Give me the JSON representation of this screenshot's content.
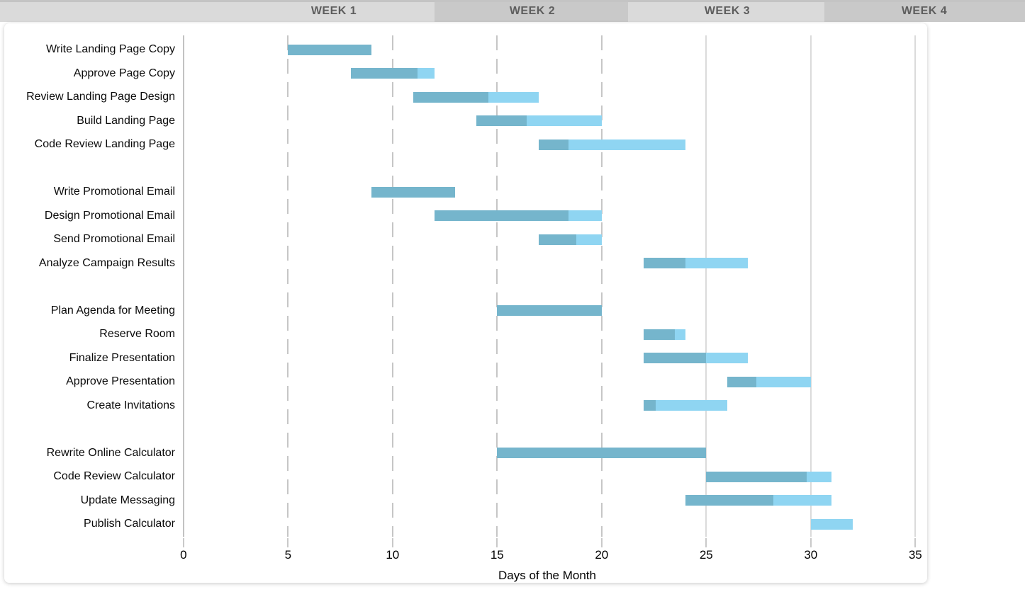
{
  "header": {
    "weeks": [
      "WEEK 1",
      "WEEK 2",
      "WEEK 3",
      "WEEK 4"
    ]
  },
  "axis": {
    "tick_values": [
      0,
      5,
      10,
      15,
      20,
      25,
      30,
      35
    ],
    "title": "Days of the Month"
  },
  "colors": {
    "bar_complete": "#75b5cc",
    "bar_remaining": "#8fd5f2",
    "grid_dashed": "#c6c6c6",
    "grid_solid": "#dbdbdb",
    "grid_axis": "#c2c2c2",
    "header_band_light": "#dadada",
    "header_band_dark": "#c9c9c9",
    "header_text": "#5e5e5e"
  },
  "chart_data": {
    "type": "gantt",
    "title": "",
    "xlabel": "Days of the Month",
    "xlim": [
      0,
      35
    ],
    "x_ticks": [
      0,
      5,
      10,
      15,
      20,
      25,
      30,
      35
    ],
    "grid": "vertical",
    "legend": "none",
    "bar_style": {
      "completed_color": "#75b5cc",
      "remaining_color": "#8fd5f2"
    },
    "tasks": [
      {
        "label": "Write Landing Page Copy",
        "group": 0,
        "start_day": 5,
        "end_day": 9,
        "percent_complete": 100
      },
      {
        "label": "Approve Page Copy",
        "group": 0,
        "start_day": 8,
        "end_day": 12,
        "percent_complete": 80
      },
      {
        "label": "Review Landing Page Design",
        "group": 0,
        "start_day": 11,
        "end_day": 17,
        "percent_complete": 60
      },
      {
        "label": "Build Landing Page",
        "group": 0,
        "start_day": 14,
        "end_day": 20,
        "percent_complete": 40
      },
      {
        "label": "Code Review Landing Page",
        "group": 0,
        "start_day": 17,
        "end_day": 24,
        "percent_complete": 20
      },
      {
        "label": "Write Promotional Email",
        "group": 1,
        "start_day": 9,
        "end_day": 13,
        "percent_complete": 100
      },
      {
        "label": "Design Promotional Email",
        "group": 1,
        "start_day": 12,
        "end_day": 20,
        "percent_complete": 80
      },
      {
        "label": "Send Promotional Email",
        "group": 1,
        "start_day": 17,
        "end_day": 20,
        "percent_complete": 60
      },
      {
        "label": "Analyze Campaign Results",
        "group": 1,
        "start_day": 22,
        "end_day": 27,
        "percent_complete": 40
      },
      {
        "label": "Plan Agenda for Meeting",
        "group": 2,
        "start_day": 15,
        "end_day": 20,
        "percent_complete": 100
      },
      {
        "label": "Reserve Room",
        "group": 2,
        "start_day": 22,
        "end_day": 24,
        "percent_complete": 75
      },
      {
        "label": "Finalize Presentation",
        "group": 2,
        "start_day": 22,
        "end_day": 27,
        "percent_complete": 60
      },
      {
        "label": "Approve Presentation",
        "group": 2,
        "start_day": 26,
        "end_day": 30,
        "percent_complete": 35
      },
      {
        "label": "Create Invitations",
        "group": 2,
        "start_day": 22,
        "end_day": 26,
        "percent_complete": 15
      },
      {
        "label": "Rewrite Online Calculator",
        "group": 3,
        "start_day": 15,
        "end_day": 25,
        "percent_complete": 100
      },
      {
        "label": "Code Review Calculator",
        "group": 3,
        "start_day": 25,
        "end_day": 31,
        "percent_complete": 80
      },
      {
        "label": "Update Messaging",
        "group": 3,
        "start_day": 24,
        "end_day": 31,
        "percent_complete": 60
      },
      {
        "label": "Publish Calculator",
        "group": 3,
        "start_day": 30,
        "end_day": 32,
        "percent_complete": 0
      }
    ]
  }
}
